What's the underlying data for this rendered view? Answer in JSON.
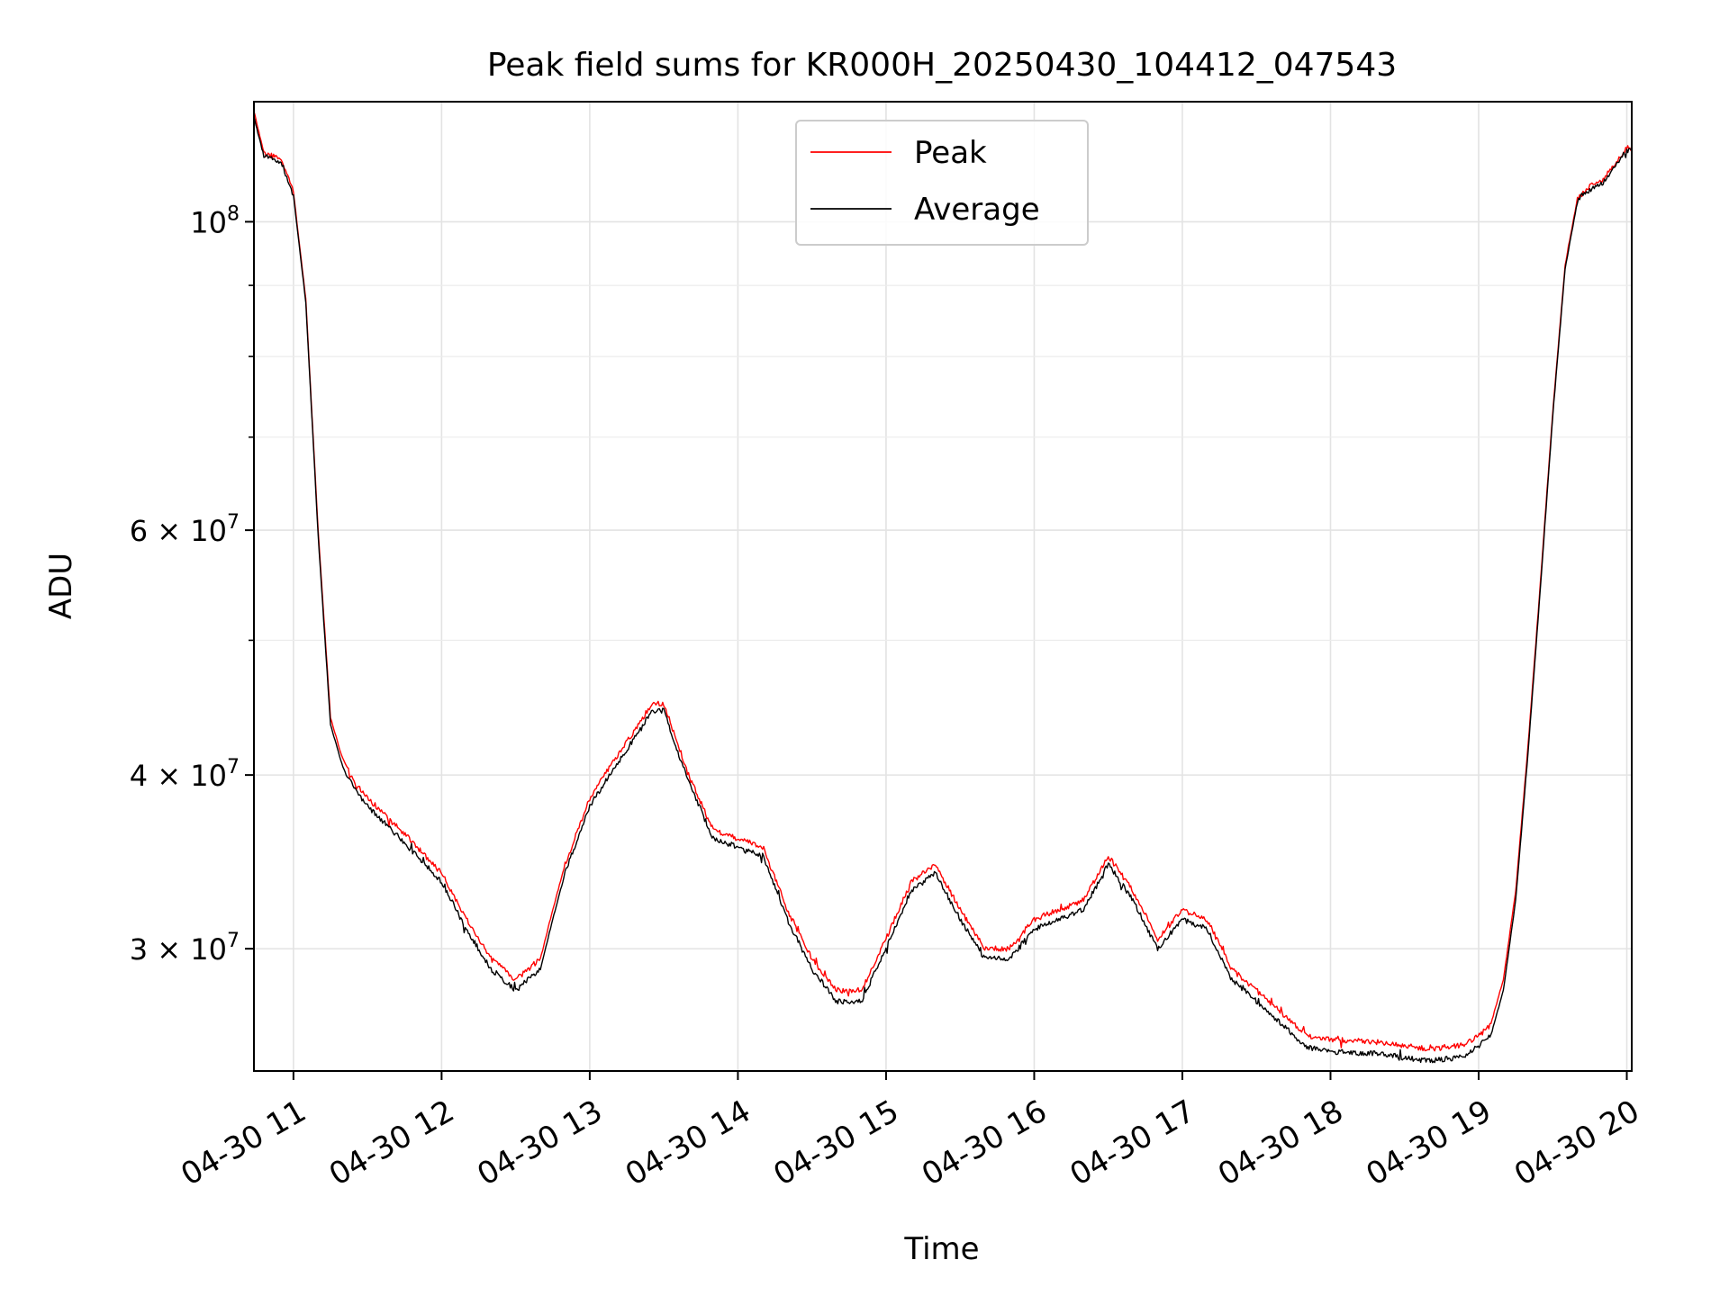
{
  "chart_data": {
    "type": "line",
    "title": "Peak field sums for KR000H_20250430_104412_047543",
    "xlabel": "Time",
    "ylabel": "ADU",
    "yscale": "log",
    "xlim": [
      "2025-04-30 10:44",
      "2025-04-30 20:02"
    ],
    "ylim": [
      24500000,
      122000000
    ],
    "grid": true,
    "legend": "upper center",
    "x_tick_labels": [
      "04-30 11",
      "04-30 12",
      "04-30 13",
      "04-30 14",
      "04-30 15",
      "04-30 16",
      "04-30 17",
      "04-30 18",
      "04-30 19",
      "04-30 20"
    ],
    "x_ticks": [
      "2025-04-30 11:00",
      "2025-04-30 12:00",
      "2025-04-30 13:00",
      "2025-04-30 14:00",
      "2025-04-30 15:00",
      "2025-04-30 16:00",
      "2025-04-30 17:00",
      "2025-04-30 18:00",
      "2025-04-30 19:00",
      "2025-04-30 20:00"
    ],
    "y_major_ticks": [
      {
        "value": 100000000,
        "base": "10",
        "exp": "8"
      },
      {
        "value": 60000000,
        "base": "6 × 10",
        "exp": "7"
      },
      {
        "value": 40000000,
        "base": "4 × 10",
        "exp": "7"
      },
      {
        "value": 30000000,
        "base": "3 × 10",
        "exp": "7"
      }
    ],
    "y_minor_ticks": [
      50000000,
      70000000,
      80000000,
      90000000
    ],
    "x": [
      "2025-04-30 10:44",
      "2025-04-30 10:46",
      "2025-04-30 10:48",
      "2025-04-30 10:55",
      "2025-04-30 11:00",
      "2025-04-30 11:05",
      "2025-04-30 11:10",
      "2025-04-30 11:15",
      "2025-04-30 11:20",
      "2025-04-30 11:25",
      "2025-04-30 11:30",
      "2025-04-30 11:40",
      "2025-04-30 11:50",
      "2025-04-30 12:00",
      "2025-04-30 12:10",
      "2025-04-30 12:20",
      "2025-04-30 12:30",
      "2025-04-30 12:40",
      "2025-04-30 12:45",
      "2025-04-30 12:50",
      "2025-04-30 13:00",
      "2025-04-30 13:10",
      "2025-04-30 13:20",
      "2025-04-30 13:25",
      "2025-04-30 13:30",
      "2025-04-30 13:40",
      "2025-04-30 13:50",
      "2025-04-30 14:00",
      "2025-04-30 14:10",
      "2025-04-30 14:20",
      "2025-04-30 14:30",
      "2025-04-30 14:40",
      "2025-04-30 14:50",
      "2025-04-30 15:00",
      "2025-04-30 15:10",
      "2025-04-30 15:20",
      "2025-04-30 15:30",
      "2025-04-30 15:40",
      "2025-04-30 15:50",
      "2025-04-30 16:00",
      "2025-04-30 16:10",
      "2025-04-30 16:20",
      "2025-04-30 16:30",
      "2025-04-30 16:40",
      "2025-04-30 16:50",
      "2025-04-30 17:00",
      "2025-04-30 17:10",
      "2025-04-30 17:20",
      "2025-04-30 17:25",
      "2025-04-30 17:30",
      "2025-04-30 17:40",
      "2025-04-30 17:50",
      "2025-04-30 18:00",
      "2025-04-30 18:20",
      "2025-04-30 18:40",
      "2025-04-30 18:55",
      "2025-04-30 19:05",
      "2025-04-30 19:10",
      "2025-04-30 19:15",
      "2025-04-30 19:20",
      "2025-04-30 19:25",
      "2025-04-30 19:30",
      "2025-04-30 19:35",
      "2025-04-30 19:40",
      "2025-04-30 19:45",
      "2025-04-30 19:50",
      "2025-04-30 19:55",
      "2025-04-30 20:00",
      "2025-04-30 20:02"
    ],
    "series": [
      {
        "name": "Peak",
        "color": "#ff0000",
        "values": [
          120000000,
          116000000,
          112000000,
          111000000,
          105000000,
          88000000,
          60000000,
          44000000,
          41000000,
          39500000,
          38500000,
          37000000,
          35500000,
          34000000,
          31500000,
          29500000,
          28500000,
          29500000,
          32000000,
          34500000,
          38500000,
          41000000,
          43500000,
          45000000,
          45000000,
          40000000,
          36500000,
          36000000,
          35500000,
          32000000,
          29500000,
          28000000,
          28000000,
          30500000,
          33500000,
          34500000,
          32000000,
          30000000,
          30000000,
          31500000,
          32000000,
          32500000,
          35000000,
          33000000,
          30500000,
          32000000,
          31500000,
          29000000,
          28500000,
          28000000,
          27000000,
          26000000,
          25800000,
          25700000,
          25400000,
          25600000,
          26500000,
          28500000,
          33000000,
          42000000,
          55000000,
          73000000,
          93000000,
          104000000,
          106000000,
          107000000,
          110000000,
          113000000,
          113000000
        ]
      },
      {
        "name": "Average",
        "color": "#000000",
        "values": [
          119000000,
          115000000,
          111500000,
          110500000,
          104500000,
          87500000,
          59500000,
          43500000,
          40500000,
          39000000,
          38000000,
          36500000,
          35000000,
          33500000,
          31000000,
          29000000,
          28000000,
          29000000,
          31500000,
          34000000,
          38000000,
          40500000,
          43000000,
          44500000,
          44500000,
          39500000,
          36000000,
          35500000,
          35000000,
          31500000,
          29000000,
          27500000,
          27500000,
          30000000,
          33000000,
          34000000,
          31500000,
          29500000,
          29500000,
          31000000,
          31500000,
          32000000,
          34500000,
          32500000,
          30000000,
          31500000,
          31000000,
          28500000,
          28000000,
          27500000,
          26500000,
          25500000,
          25300000,
          25200000,
          24900000,
          25100000,
          26000000,
          28000000,
          32500000,
          41500000,
          54500000,
          72500000,
          92500000,
          103500000,
          105500000,
          106500000,
          109500000,
          112500000,
          112500000
        ]
      }
    ]
  }
}
